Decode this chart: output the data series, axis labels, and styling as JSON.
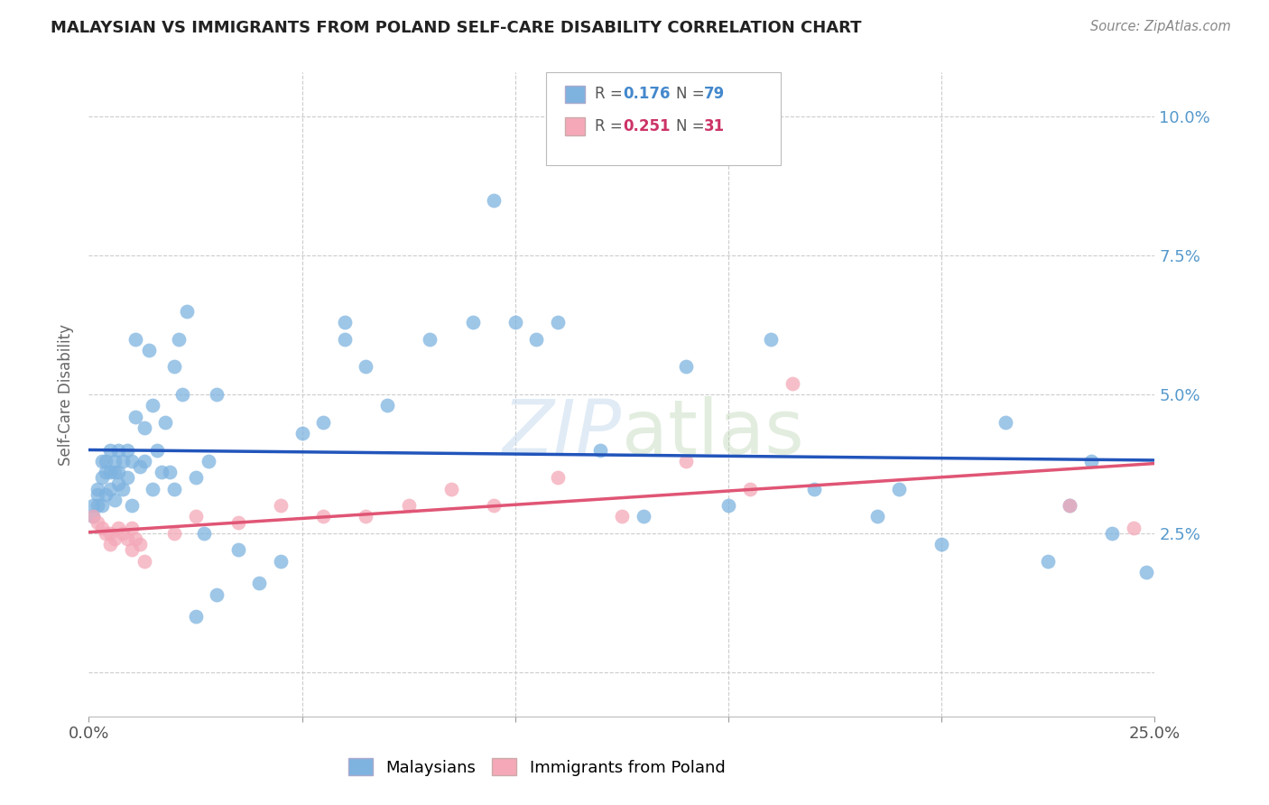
{
  "title": "MALAYSIAN VS IMMIGRANTS FROM POLAND SELF-CARE DISABILITY CORRELATION CHART",
  "source": "Source: ZipAtlas.com",
  "ylabel": "Self-Care Disability",
  "xmin": 0.0,
  "xmax": 0.25,
  "ymin": -0.008,
  "ymax": 0.108,
  "malaysian_color": "#7eb3e0",
  "poland_color": "#f4a8b8",
  "trend_blue": "#2255bb",
  "trend_pink": "#e05575",
  "malaysians_x": [
    0.001,
    0.001,
    0.002,
    0.002,
    0.002,
    0.003,
    0.003,
    0.003,
    0.004,
    0.004,
    0.004,
    0.005,
    0.005,
    0.005,
    0.006,
    0.006,
    0.006,
    0.007,
    0.007,
    0.007,
    0.008,
    0.008,
    0.009,
    0.009,
    0.01,
    0.01,
    0.011,
    0.011,
    0.012,
    0.013,
    0.013,
    0.014,
    0.015,
    0.015,
    0.016,
    0.017,
    0.018,
    0.019,
    0.02,
    0.02,
    0.021,
    0.022,
    0.023,
    0.025,
    0.025,
    0.027,
    0.028,
    0.03,
    0.03,
    0.035,
    0.04,
    0.045,
    0.05,
    0.055,
    0.06,
    0.06,
    0.065,
    0.07,
    0.08,
    0.09,
    0.095,
    0.1,
    0.105,
    0.11,
    0.12,
    0.13,
    0.14,
    0.15,
    0.16,
    0.17,
    0.185,
    0.19,
    0.2,
    0.215,
    0.225,
    0.23,
    0.235,
    0.24,
    0.248
  ],
  "malaysians_y": [
    0.028,
    0.03,
    0.032,
    0.03,
    0.033,
    0.03,
    0.035,
    0.038,
    0.032,
    0.036,
    0.038,
    0.033,
    0.036,
    0.04,
    0.031,
    0.036,
    0.038,
    0.034,
    0.036,
    0.04,
    0.033,
    0.038,
    0.035,
    0.04,
    0.03,
    0.038,
    0.046,
    0.06,
    0.037,
    0.038,
    0.044,
    0.058,
    0.048,
    0.033,
    0.04,
    0.036,
    0.045,
    0.036,
    0.033,
    0.055,
    0.06,
    0.05,
    0.065,
    0.035,
    0.01,
    0.025,
    0.038,
    0.05,
    0.014,
    0.022,
    0.016,
    0.02,
    0.043,
    0.045,
    0.06,
    0.063,
    0.055,
    0.048,
    0.06,
    0.063,
    0.085,
    0.063,
    0.06,
    0.063,
    0.04,
    0.028,
    0.055,
    0.03,
    0.06,
    0.033,
    0.028,
    0.033,
    0.023,
    0.045,
    0.02,
    0.03,
    0.038,
    0.025,
    0.018
  ],
  "poland_x": [
    0.001,
    0.002,
    0.003,
    0.004,
    0.005,
    0.005,
    0.006,
    0.007,
    0.008,
    0.009,
    0.01,
    0.01,
    0.011,
    0.012,
    0.013,
    0.02,
    0.025,
    0.035,
    0.045,
    0.055,
    0.065,
    0.075,
    0.085,
    0.095,
    0.11,
    0.125,
    0.14,
    0.155,
    0.165,
    0.23,
    0.245
  ],
  "poland_y": [
    0.028,
    0.027,
    0.026,
    0.025,
    0.025,
    0.023,
    0.024,
    0.026,
    0.025,
    0.024,
    0.022,
    0.026,
    0.024,
    0.023,
    0.02,
    0.025,
    0.028,
    0.027,
    0.03,
    0.028,
    0.028,
    0.03,
    0.033,
    0.03,
    0.035,
    0.028,
    0.038,
    0.033,
    0.052,
    0.03,
    0.026
  ],
  "grid_yticks": [
    0.0,
    0.025,
    0.05,
    0.075,
    0.1
  ],
  "grid_xticks": [
    0.0,
    0.05,
    0.1,
    0.15,
    0.2,
    0.25
  ]
}
